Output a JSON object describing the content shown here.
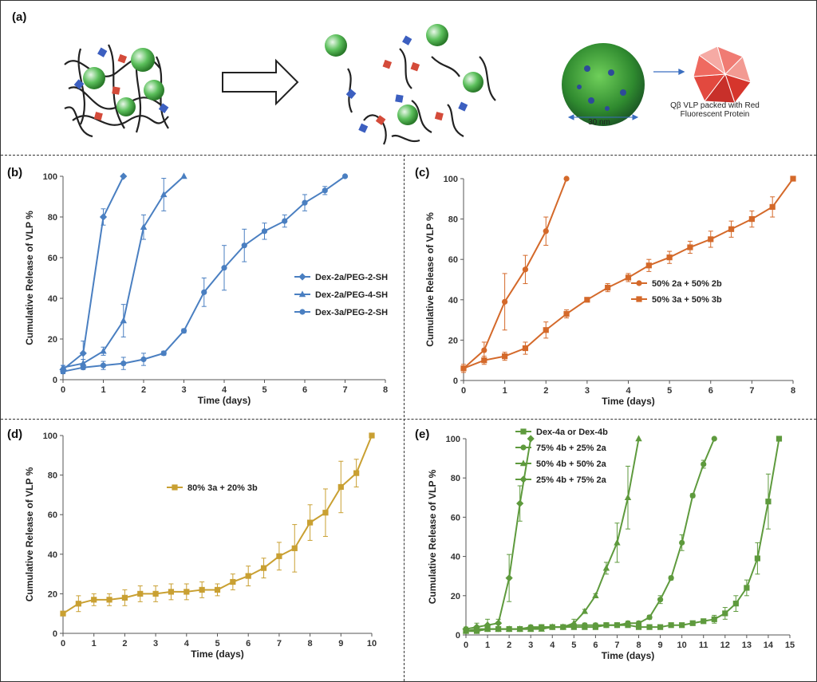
{
  "panel_a": {
    "label": "(a)",
    "scale_text": "30 nm",
    "vlp_caption_line1": "Qβ VLP packed with Red",
    "vlp_caption_line2": "Fluorescent Protein"
  },
  "chart_data": [
    {
      "panel": "(b)",
      "type": "line",
      "xlabel": "Time (days)",
      "ylabel": "Cumulative Release of VLP %",
      "xlim": [
        0,
        8
      ],
      "ylim": [
        0,
        100
      ],
      "xticks": [
        0,
        1,
        2,
        3,
        4,
        5,
        6,
        7,
        8
      ],
      "yticks": [
        0,
        20,
        40,
        60,
        80,
        100
      ],
      "legend_position": "center-right",
      "color": "#4a7fc1",
      "series": [
        {
          "name": "Dex-2a/PEG-2-SH",
          "marker": "diamond",
          "x": [
            0,
            0.5,
            1,
            1.5
          ],
          "y": [
            5,
            13,
            80,
            100
          ],
          "err": [
            2,
            6,
            4,
            0
          ]
        },
        {
          "name": "Dex-2a/PEG-4-SH",
          "marker": "triangle",
          "x": [
            0,
            0.5,
            1,
            1.5,
            2,
            2.5,
            3
          ],
          "y": [
            6,
            8,
            14,
            29,
            75,
            91,
            100
          ],
          "err": [
            1,
            2,
            2,
            8,
            6,
            8,
            0
          ]
        },
        {
          "name": "Dex-3a/PEG-2-SH",
          "marker": "circle",
          "x": [
            0,
            0.5,
            1,
            1.5,
            2,
            2.5,
            3,
            3.5,
            4,
            4.5,
            5,
            5.5,
            6,
            6.5,
            7
          ],
          "y": [
            4,
            6,
            7,
            8,
            10,
            13,
            24,
            43,
            55,
            66,
            73,
            78,
            87,
            93,
            100
          ],
          "err": [
            1,
            1,
            2,
            3,
            3,
            1,
            1,
            7,
            11,
            8,
            4,
            3,
            4,
            2,
            0
          ]
        }
      ]
    },
    {
      "panel": "(c)",
      "type": "line",
      "xlabel": "Time (days)",
      "ylabel": "Cumulative Release of VLP %",
      "xlim": [
        0,
        8
      ],
      "ylim": [
        0,
        100
      ],
      "xticks": [
        0,
        1,
        2,
        3,
        4,
        5,
        6,
        7,
        8
      ],
      "yticks": [
        0,
        20,
        40,
        60,
        80,
        100
      ],
      "legend_position": "center-right",
      "color": "#d4692a",
      "series": [
        {
          "name": "50% 2a + 50% 2b",
          "marker": "circle",
          "x": [
            0,
            0.5,
            1,
            1.5,
            2,
            2.5
          ],
          "y": [
            6,
            15,
            39,
            55,
            74,
            100
          ],
          "err": [
            2,
            4,
            14,
            7,
            7,
            0
          ]
        },
        {
          "name": "50% 3a + 50% 3b",
          "marker": "square",
          "x": [
            0,
            0.5,
            1,
            1.5,
            2,
            2.5,
            3,
            3.5,
            4,
            4.5,
            5,
            5.5,
            6,
            6.5,
            7,
            7.5,
            8
          ],
          "y": [
            6,
            10,
            12,
            16,
            25,
            33,
            40,
            46,
            51,
            57,
            61,
            66,
            70,
            75,
            80,
            86,
            100
          ],
          "err": [
            1,
            2,
            2,
            3,
            4,
            2,
            1,
            2,
            2,
            3,
            3,
            3,
            4,
            4,
            4,
            5,
            0
          ]
        }
      ]
    },
    {
      "panel": "(d)",
      "type": "line",
      "xlabel": "Time (days)",
      "ylabel": "Cumulative Release of VLP %",
      "xlim": [
        0,
        10
      ],
      "ylim": [
        0,
        100
      ],
      "xticks": [
        0,
        1,
        2,
        3,
        4,
        5,
        6,
        7,
        8,
        9,
        10
      ],
      "yticks": [
        0,
        20,
        40,
        60,
        80,
        100
      ],
      "legend_position": "center",
      "color": "#c9a032",
      "series": [
        {
          "name": "80% 3a + 20% 3b",
          "marker": "square",
          "x": [
            0,
            0.5,
            1,
            1.5,
            2,
            2.5,
            3,
            3.5,
            4,
            4.5,
            5,
            5.5,
            6,
            6.5,
            7,
            7.5,
            8,
            8.5,
            9,
            9.5,
            10
          ],
          "y": [
            10,
            15,
            17,
            17,
            18,
            20,
            20,
            21,
            21,
            22,
            22,
            26,
            29,
            33,
            39,
            43,
            56,
            61,
            74,
            81,
            100
          ],
          "err": [
            1,
            4,
            3,
            3,
            4,
            4,
            4,
            4,
            4,
            4,
            3,
            4,
            5,
            5,
            7,
            12,
            9,
            12,
            13,
            7,
            0
          ]
        }
      ]
    },
    {
      "panel": "(e)",
      "type": "line",
      "xlabel": "Time (days)",
      "ylabel": "Cumulative Release of VLP %",
      "xlim": [
        0,
        15
      ],
      "ylim": [
        0,
        100
      ],
      "xticks": [
        0,
        1,
        2,
        3,
        4,
        5,
        6,
        7,
        8,
        9,
        10,
        11,
        12,
        13,
        14,
        15
      ],
      "yticks": [
        0,
        20,
        40,
        60,
        80,
        100
      ],
      "legend_position": "top-left",
      "color": "#5e9a3d",
      "series": [
        {
          "name": "Dex-4a or Dex-4b",
          "marker": "square",
          "x": [
            0,
            0.5,
            1,
            1.5,
            2,
            2.5,
            3,
            3.5,
            4,
            4.5,
            5,
            5.5,
            6,
            6.5,
            7,
            7.5,
            8,
            8.5,
            9,
            9.5,
            10,
            10.5,
            11,
            11.5,
            12,
            12.5,
            13,
            13.5,
            14,
            14.5
          ],
          "y": [
            2,
            2,
            3,
            3,
            3,
            3,
            3,
            4,
            4,
            4,
            4,
            4,
            4,
            5,
            5,
            5,
            4,
            4,
            4,
            5,
            5,
            6,
            7,
            8,
            11,
            16,
            24,
            39,
            68,
            100
          ],
          "err": [
            1,
            1,
            1,
            1,
            1,
            1,
            1,
            1,
            1,
            1,
            1,
            1,
            1,
            1,
            1,
            1,
            1,
            1,
            1,
            1,
            1,
            1,
            1,
            2,
            3,
            4,
            4,
            8,
            14,
            0
          ]
        },
        {
          "name": "75% 4b + 25% 2a",
          "marker": "circle",
          "x": [
            0,
            0.5,
            1,
            1.5,
            2,
            2.5,
            3,
            3.5,
            4,
            4.5,
            5,
            5.5,
            6,
            6.5,
            7,
            7.5,
            8,
            8.5,
            9,
            9.5,
            10,
            10.5,
            11,
            11.5
          ],
          "y": [
            2,
            2,
            3,
            3,
            3,
            3,
            4,
            4,
            4,
            4,
            5,
            5,
            5,
            5,
            5,
            6,
            6,
            9,
            18,
            29,
            47,
            71,
            87,
            100
          ],
          "err": [
            1,
            1,
            1,
            1,
            1,
            1,
            1,
            1,
            1,
            1,
            1,
            1,
            1,
            1,
            1,
            1,
            1,
            1,
            2,
            1,
            4,
            1,
            2,
            0
          ]
        },
        {
          "name": "50% 4b + 50% 2a",
          "marker": "triangle",
          "x": [
            0,
            0.5,
            1,
            1.5,
            2,
            2.5,
            3,
            3.5,
            4,
            4.5,
            5,
            5.5,
            6,
            6.5,
            7,
            7.5,
            8
          ],
          "y": [
            2,
            3,
            3,
            3,
            3,
            3,
            3,
            3,
            4,
            4,
            6,
            12,
            20,
            34,
            47,
            70,
            100
          ],
          "err": [
            1,
            1,
            1,
            1,
            1,
            1,
            1,
            1,
            1,
            1,
            2,
            1,
            1,
            3,
            10,
            16,
            0
          ]
        },
        {
          "name": "25% 4b + 75% 2a",
          "marker": "diamond",
          "x": [
            0,
            0.5,
            1,
            1.5,
            2,
            2.5,
            3
          ],
          "y": [
            3,
            4,
            5,
            6,
            29,
            67,
            100
          ],
          "err": [
            1,
            2,
            3,
            2,
            12,
            9,
            0
          ]
        }
      ]
    }
  ]
}
